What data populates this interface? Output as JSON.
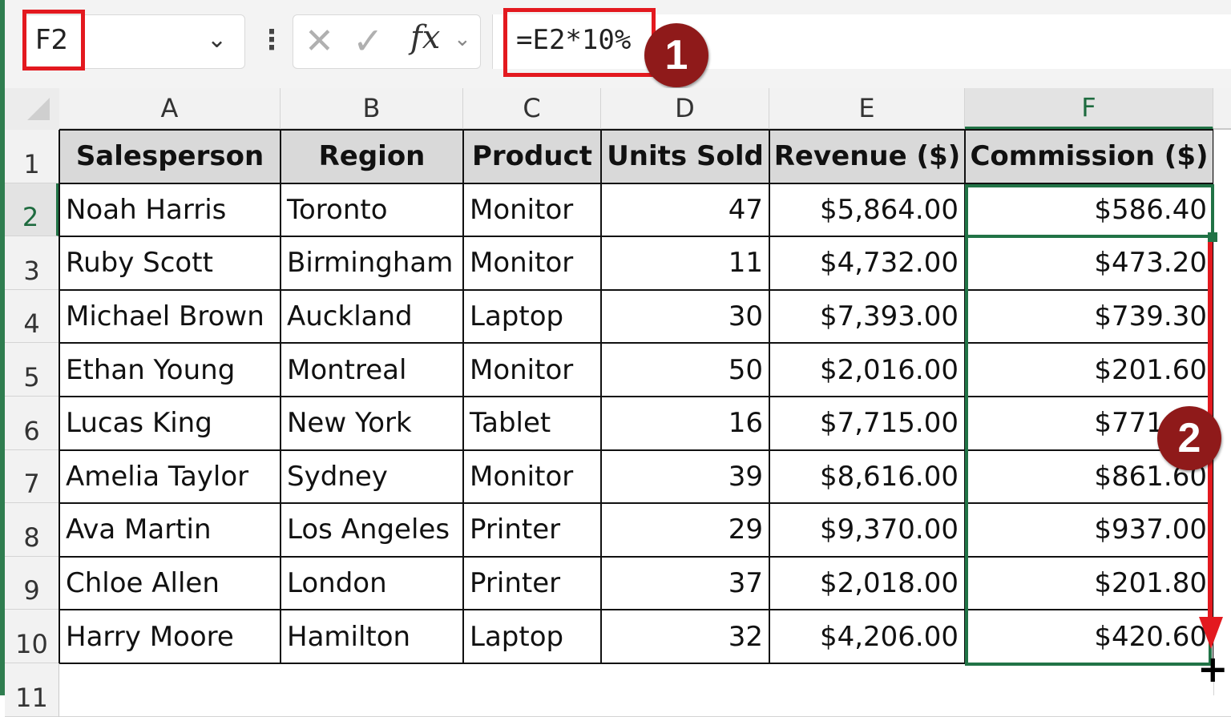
{
  "name_box": {
    "value": "F2"
  },
  "formula": {
    "value": "=E2*10%",
    "fx_label": "fx"
  },
  "icons": {
    "cancel": "cancel-icon",
    "enter": "enter-icon",
    "fx": "function-icon",
    "kebab": "more-options-icon"
  },
  "annotations": {
    "step1": "1",
    "step2": "2",
    "highlight_color": "#e3191f",
    "badge_color": "#8f1a1a"
  },
  "selection": {
    "active_cell": "F2",
    "range": "F2:F10",
    "accent": "#217346"
  },
  "columns": [
    "A",
    "B",
    "C",
    "D",
    "E",
    "F"
  ],
  "rows": [
    "1",
    "2",
    "3",
    "4",
    "5",
    "6",
    "7",
    "8",
    "9",
    "10",
    "11"
  ],
  "table": {
    "headers": [
      "Salesperson",
      "Region",
      "Product",
      "Units Sold",
      "Revenue ($)",
      "Commission ($)"
    ],
    "data": [
      [
        "Noah Harris",
        "Toronto",
        "Monitor",
        "47",
        "$5,864.00",
        "$586.40"
      ],
      [
        "Ruby Scott",
        "Birmingham",
        "Monitor",
        "11",
        "$4,732.00",
        "$473.20"
      ],
      [
        "Michael Brown",
        "Auckland",
        "Laptop",
        "30",
        "$7,393.00",
        "$739.30"
      ],
      [
        "Ethan Young",
        "Montreal",
        "Monitor",
        "50",
        "$2,016.00",
        "$201.60"
      ],
      [
        "Lucas King",
        "New York",
        "Tablet",
        "16",
        "$7,715.00",
        "$771.50"
      ],
      [
        "Amelia Taylor",
        "Sydney",
        "Monitor",
        "39",
        "$8,616.00",
        "$861.60"
      ],
      [
        "Ava Martin",
        "Los Angeles",
        "Printer",
        "29",
        "$9,370.00",
        "$937.00"
      ],
      [
        "Chloe Allen",
        "London",
        "Printer",
        "37",
        "$2,018.00",
        "$201.80"
      ],
      [
        "Harry Moore",
        "Hamilton",
        "Laptop",
        "32",
        "$4,206.00",
        "$420.60"
      ]
    ]
  }
}
